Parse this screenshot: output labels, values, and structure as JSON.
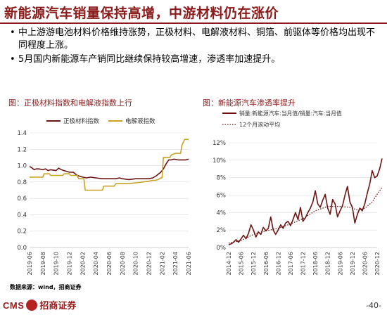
{
  "header": {
    "title": "新能源汽车销量保持高增，中游材料仍在涨价"
  },
  "bullets": [
    {
      "text": "中上游游电池材料价格维持涨势，正极材料、电解液材料、铜箔、前驱体等价格均出现不同程度上涨。"
    },
    {
      "text": "5月国内新能源车产销同比继续保持较高增速，渗透率加速提升。"
    }
  ],
  "footer": {
    "source": "数据来源：wind，招商证券",
    "brand_latin": "CMS",
    "brand_cn": "招商证券",
    "page": "-40-"
  },
  "colors": {
    "accent": "#8b1a1a",
    "series_dark": "#6e1414",
    "series_gold": "#c9a227",
    "grid": "#d9d9d9"
  },
  "chart_data": [
    {
      "type": "line",
      "title": "图：正极材料指数和电解液指数上行",
      "xlabel": "",
      "ylabel": "",
      "ylim": [
        0.0,
        1.4
      ],
      "yticks": [
        "0.0",
        "0.2",
        "0.4",
        "0.6",
        "0.8",
        "1.0",
        "1.2",
        "1.4"
      ],
      "xticks": [
        "2019-06",
        "2019-08",
        "2019-10",
        "2019-12",
        "2020-02",
        "2020-04",
        "2020-06",
        "2020-08",
        "2020-10",
        "2020-12",
        "2021-02",
        "2021-04",
        "2021-06"
      ],
      "grid": true,
      "legend_position": "top",
      "series": [
        {
          "name": "正极材料指数",
          "color": "#6e1414",
          "points": [
            [
              0,
              0.99
            ],
            [
              0.2,
              0.97
            ],
            [
              0.35,
              0.95
            ],
            [
              0.5,
              0.96
            ],
            [
              0.7,
              0.96
            ],
            [
              1.0,
              0.95
            ],
            [
              1.2,
              0.96
            ],
            [
              1.4,
              0.94
            ],
            [
              1.6,
              0.95
            ],
            [
              2.0,
              0.94
            ],
            [
              2.2,
              0.97
            ],
            [
              2.4,
              0.95
            ],
            [
              2.6,
              0.94
            ],
            [
              3.0,
              0.92
            ],
            [
              3.3,
              0.92
            ],
            [
              3.6,
              0.88
            ],
            [
              4.0,
              0.86
            ],
            [
              4.3,
              0.85
            ],
            [
              4.6,
              0.86
            ],
            [
              5.0,
              0.85
            ],
            [
              5.5,
              0.84
            ],
            [
              6.0,
              0.84
            ],
            [
              6.5,
              0.84
            ],
            [
              6.8,
              0.85
            ],
            [
              7.0,
              0.84
            ],
            [
              7.5,
              0.83
            ],
            [
              8.0,
              0.84
            ],
            [
              8.5,
              0.84
            ],
            [
              9.0,
              0.84
            ],
            [
              9.3,
              0.85
            ],
            [
              9.6,
              0.88
            ],
            [
              9.9,
              0.92
            ],
            [
              10.1,
              0.96
            ],
            [
              10.3,
              1.02
            ],
            [
              10.5,
              1.07
            ],
            [
              10.7,
              1.07
            ],
            [
              10.9,
              1.08
            ],
            [
              11.2,
              1.07
            ],
            [
              11.5,
              1.07
            ],
            [
              11.8,
              1.07
            ],
            [
              12.0,
              1.08
            ]
          ]
        },
        {
          "name": "电解液指数",
          "color": "#c9a227",
          "points": [
            [
              0,
              0.86
            ],
            [
              1.0,
              0.86
            ],
            [
              1.1,
              0.9
            ],
            [
              1.5,
              0.9
            ],
            [
              1.6,
              0.88
            ],
            [
              2.5,
              0.88
            ],
            [
              2.6,
              0.9
            ],
            [
              3.0,
              0.9
            ],
            [
              3.1,
              0.88
            ],
            [
              3.6,
              0.88
            ],
            [
              3.7,
              0.84
            ],
            [
              4.1,
              0.84
            ],
            [
              4.2,
              0.7
            ],
            [
              5.5,
              0.7
            ],
            [
              5.6,
              0.75
            ],
            [
              6.4,
              0.75
            ],
            [
              6.5,
              0.78
            ],
            [
              7.0,
              0.78
            ],
            [
              7.5,
              0.78
            ],
            [
              8.0,
              0.79
            ],
            [
              8.5,
              0.8
            ],
            [
              9.0,
              0.81
            ],
            [
              9.3,
              0.82
            ],
            [
              9.5,
              0.82
            ],
            [
              9.7,
              0.83
            ],
            [
              9.9,
              0.85
            ],
            [
              10.0,
              0.85
            ],
            [
              10.1,
              1.1
            ],
            [
              10.6,
              1.1
            ],
            [
              10.7,
              1.13
            ],
            [
              11.0,
              1.15
            ],
            [
              11.4,
              1.15
            ],
            [
              11.5,
              1.25
            ],
            [
              11.7,
              1.32
            ],
            [
              12.0,
              1.32
            ]
          ]
        }
      ]
    },
    {
      "type": "line",
      "title": "图：新能源汽车渗透率提升",
      "xlabel": "",
      "ylabel": "",
      "ylim": [
        0,
        12
      ],
      "yticks": [
        "0%",
        "2%",
        "4%",
        "6%",
        "8%",
        "10%",
        "12%"
      ],
      "xticks": [
        "2014-12",
        "2015-06",
        "2015-12",
        "2016-06",
        "2016-12",
        "2017-06",
        "2017-12",
        "2018-06",
        "2018-12",
        "2019-06",
        "2019-12",
        "2020-06",
        "2020-12"
      ],
      "grid": true,
      "legend_position": "top",
      "series": [
        {
          "name": "销量:新能源汽车:当月值/销量:汽车:当月值",
          "color": "#6e1414",
          "style": "solid",
          "points": [
            [
              0,
              0.3
            ],
            [
              0.3,
              0.5
            ],
            [
              0.6,
              0.9
            ],
            [
              0.8,
              0.6
            ],
            [
              1.0,
              1.0
            ],
            [
              1.2,
              1.4
            ],
            [
              1.4,
              1.0
            ],
            [
              1.6,
              1.6
            ],
            [
              1.8,
              2.6
            ],
            [
              2.0,
              2.0
            ],
            [
              2.2,
              1.2
            ],
            [
              2.4,
              1.8
            ],
            [
              2.6,
              1.5
            ],
            [
              2.8,
              2.3
            ],
            [
              3.0,
              1.9
            ],
            [
              3.2,
              2.2
            ],
            [
              3.4,
              3.5
            ],
            [
              3.6,
              2.0
            ],
            [
              3.8,
              1.5
            ],
            [
              4.0,
              2.0
            ],
            [
              4.2,
              2.6
            ],
            [
              4.4,
              2.2
            ],
            [
              4.6,
              2.8
            ],
            [
              4.8,
              3.0
            ],
            [
              5.0,
              2.5
            ],
            [
              5.2,
              3.2
            ],
            [
              5.4,
              4.0
            ],
            [
              5.6,
              3.2
            ],
            [
              5.8,
              4.6
            ],
            [
              6.0,
              3.0
            ],
            [
              6.2,
              3.4
            ],
            [
              6.4,
              4.0
            ],
            [
              6.6,
              4.5
            ],
            [
              6.8,
              5.2
            ],
            [
              7.0,
              6.5
            ],
            [
              7.2,
              5.0
            ],
            [
              7.4,
              4.6
            ],
            [
              7.6,
              5.4
            ],
            [
              7.8,
              6.1
            ],
            [
              8.0,
              4.5
            ],
            [
              8.2,
              3.8
            ],
            [
              8.4,
              5.5
            ],
            [
              8.6,
              5.0
            ],
            [
              8.8,
              3.5
            ],
            [
              9.0,
              4.2
            ],
            [
              9.2,
              4.8
            ],
            [
              9.4,
              6.0
            ],
            [
              9.6,
              7.0
            ],
            [
              9.8,
              5.2
            ],
            [
              10.0,
              4.6
            ],
            [
              10.2,
              2.8
            ],
            [
              10.4,
              3.8
            ],
            [
              10.6,
              4.5
            ],
            [
              10.8,
              4.2
            ],
            [
              11.0,
              5.0
            ],
            [
              11.2,
              6.2
            ],
            [
              11.4,
              7.3
            ],
            [
              11.6,
              8.8
            ],
            [
              11.8,
              8.0
            ],
            [
              12.0,
              8.2
            ],
            [
              12.2,
              9.0
            ],
            [
              12.4,
              10.2
            ]
          ]
        },
        {
          "name": "12个月滚动平均",
          "color": "#6e1414",
          "style": "dotted",
          "points": [
            [
              0,
              0.5
            ],
            [
              1,
              0.8
            ],
            [
              2,
              1.5
            ],
            [
              3,
              1.9
            ],
            [
              4,
              2.2
            ],
            [
              5,
              2.7
            ],
            [
              6,
              3.3
            ],
            [
              7,
              4.2
            ],
            [
              8,
              4.7
            ],
            [
              9,
              4.7
            ],
            [
              9.8,
              4.6
            ],
            [
              10.4,
              4.3
            ],
            [
              11,
              4.5
            ],
            [
              11.6,
              5.2
            ],
            [
              12,
              6.1
            ],
            [
              12.4,
              6.9
            ]
          ]
        }
      ]
    }
  ]
}
